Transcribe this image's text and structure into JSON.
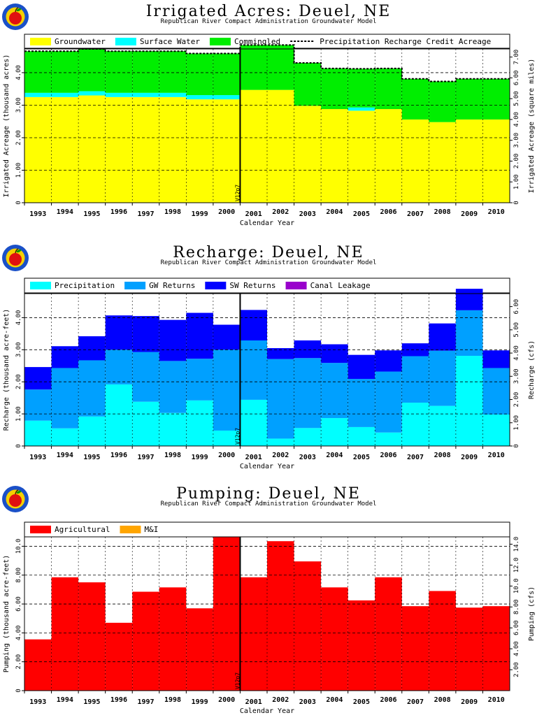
{
  "logo": {
    "icon": "apple-logo-icon",
    "ring_color": "#1a50c8",
    "fill_color": "#f5d000",
    "apple_color": "#e01010"
  },
  "chart_data": [
    {
      "id": "irrigated",
      "type": "bar",
      "title": "Irrigated Acres: Deuel, NE",
      "subtitle": "Republican River Compact Administration Groundwater Model",
      "xlabel": "Calendar Year",
      "ylabel": "Irrigated Acreage (thousand acres)",
      "y2label": "Irrigated Acreage (square miles)",
      "ylim": [
        0,
        4.73
      ],
      "yticks": [
        "0",
        "1.00",
        "2.00",
        "3.00",
        "4.00"
      ],
      "yticks_right": [
        "0",
        "1.00",
        "2.00",
        "3.00",
        "4.00",
        "5.00",
        "6.00",
        "7.00"
      ],
      "y2max": 7.39,
      "marker_label": "V12p7",
      "categories": [
        "1993",
        "1994",
        "1995",
        "1996",
        "1997",
        "1998",
        "1999",
        "2000",
        "2001",
        "2002",
        "2003",
        "2004",
        "2005",
        "2006",
        "2007",
        "2008",
        "2009",
        "2010"
      ],
      "series": [
        {
          "name": "Groundwater",
          "color": "#ffff00",
          "values": [
            3.25,
            3.25,
            3.3,
            3.25,
            3.25,
            3.25,
            3.18,
            3.18,
            3.47,
            3.47,
            2.98,
            2.88,
            2.83,
            2.88,
            2.56,
            2.48,
            2.56,
            2.56
          ]
        },
        {
          "name": "Surface Water",
          "color": "#00ffff",
          "values": [
            0.13,
            0.13,
            0.13,
            0.13,
            0.13,
            0.13,
            0.13,
            0.13,
            0.0,
            0.0,
            0.0,
            0.0,
            0.1,
            0.0,
            0.0,
            0.0,
            0.0,
            0.0
          ]
        },
        {
          "name": "Commingled",
          "color": "#00ee00",
          "values": [
            1.28,
            1.28,
            1.3,
            1.28,
            1.28,
            1.28,
            1.28,
            1.28,
            1.38,
            1.38,
            1.32,
            1.25,
            1.19,
            1.25,
            1.25,
            1.25,
            1.25,
            1.25
          ]
        }
      ],
      "line": {
        "name": "Precipitation Recharge Credit Acreage",
        "values": [
          4.66,
          4.66,
          4.73,
          4.66,
          4.66,
          4.66,
          4.59,
          4.59,
          4.85,
          4.85,
          4.3,
          4.13,
          4.12,
          4.13,
          3.81,
          3.73,
          3.81,
          3.81
        ]
      }
    },
    {
      "id": "recharge",
      "type": "bar",
      "title": "Recharge: Deuel, NE",
      "subtitle": "Republican River Compact Administration Groundwater Model",
      "xlabel": "Calendar Year",
      "ylabel": "Recharge (thousand acre-feet)",
      "y2label": "Recharge (cfs)",
      "ylim": [
        0,
        4.75
      ],
      "yticks": [
        "0",
        "1.00",
        "2.00",
        "3.00",
        "4.00"
      ],
      "yticks_right": [
        "0",
        "1.00",
        "2.00",
        "3.00",
        "4.00",
        "5.00",
        "6.00"
      ],
      "y2max": 6.56,
      "marker_label": "V12p7",
      "categories": [
        "1993",
        "1994",
        "1995",
        "1996",
        "1997",
        "1998",
        "1999",
        "2000",
        "2001",
        "2002",
        "2003",
        "2004",
        "2005",
        "2006",
        "2007",
        "2008",
        "2009",
        "2010"
      ],
      "series": [
        {
          "name": "Precipitation",
          "color": "#00ffff",
          "values": [
            0.79,
            0.55,
            0.92,
            1.92,
            1.38,
            1.03,
            1.42,
            0.48,
            1.44,
            0.23,
            0.56,
            0.87,
            0.59,
            0.42,
            1.35,
            1.25,
            2.81,
            0.98
          ]
        },
        {
          "name": "GW Returns",
          "color": "#00a0ff",
          "values": [
            0.97,
            1.88,
            1.75,
            1.08,
            1.55,
            1.62,
            1.3,
            2.52,
            1.85,
            2.48,
            2.18,
            1.72,
            1.5,
            1.9,
            1.45,
            1.72,
            1.42,
            1.45
          ]
        },
        {
          "name": "SW Returns",
          "color": "#0000ff",
          "values": [
            0.7,
            0.68,
            0.75,
            1.07,
            1.12,
            1.28,
            1.43,
            0.78,
            0.95,
            0.34,
            0.55,
            0.58,
            0.75,
            0.66,
            0.4,
            0.85,
            0.67,
            0.55
          ]
        },
        {
          "name": "Canal Leakage",
          "color": "#9900cc",
          "values": [
            0,
            0,
            0,
            0,
            0,
            0,
            0,
            0,
            0,
            0,
            0,
            0,
            0,
            0,
            0,
            0,
            0,
            0
          ]
        }
      ]
    },
    {
      "id": "pumping",
      "type": "bar",
      "title": "Pumping: Deuel, NE",
      "subtitle": "Republican River Compact Administration Groundwater Model",
      "xlabel": "Calendar Year",
      "ylabel": "Pumping (thousand acre-feet)",
      "y2label": "Pumping (cfs)",
      "ylim": [
        0,
        10.65
      ],
      "yticks": [
        "0",
        "2.00",
        "4.00",
        "6.00",
        "8.00",
        "10.0"
      ],
      "yticks_right": [
        "2.00",
        "4.00",
        "6.00",
        "8.00",
        "10.0",
        "12.0",
        "14.0"
      ],
      "y2max": 14.7,
      "y2ticks_start": 1,
      "marker_label": "V12p7",
      "categories": [
        "1993",
        "1994",
        "1995",
        "1996",
        "1997",
        "1998",
        "1999",
        "2000",
        "2001",
        "2002",
        "2003",
        "2004",
        "2005",
        "2006",
        "2007",
        "2008",
        "2009",
        "2010"
      ],
      "series": [
        {
          "name": "Agricultural",
          "color": "#ff0000",
          "values": [
            3.55,
            7.85,
            7.5,
            4.7,
            6.85,
            7.15,
            5.7,
            10.65,
            7.85,
            10.35,
            8.95,
            7.15,
            6.25,
            7.85,
            5.85,
            6.9,
            5.75,
            5.85
          ]
        },
        {
          "name": "M&I",
          "color": "#ffa500",
          "values": [
            0,
            0,
            0,
            0,
            0,
            0,
            0,
            0,
            0,
            0,
            0,
            0,
            0,
            0,
            0,
            0,
            0,
            0
          ]
        }
      ]
    }
  ]
}
